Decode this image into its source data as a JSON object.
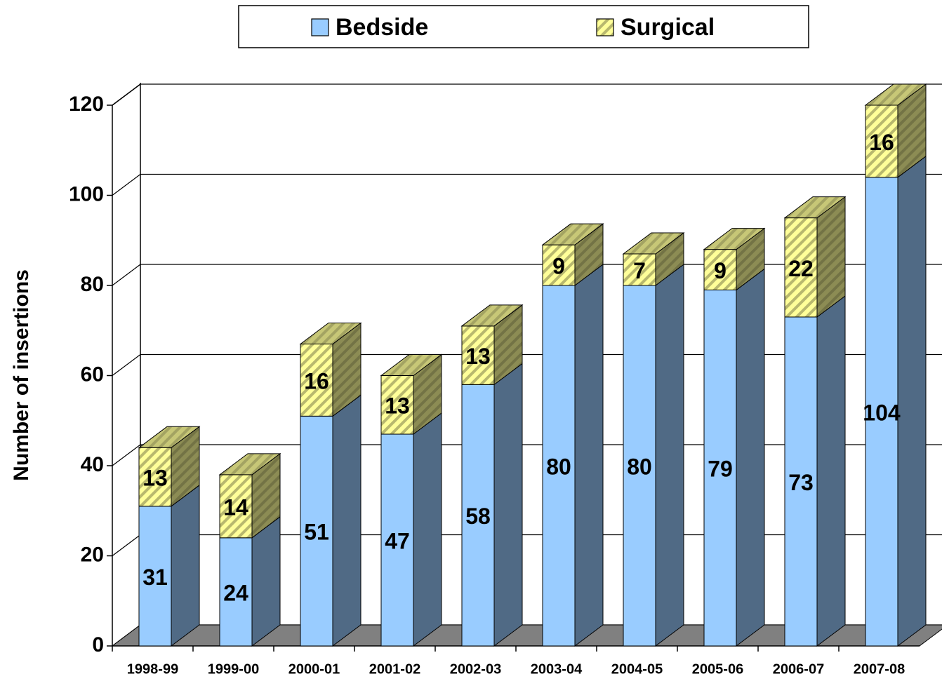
{
  "chart_data": {
    "type": "bar",
    "stacked": true,
    "ylabel": "Number of insertions",
    "categories": [
      "1998-99",
      "1999-00",
      "2000-01",
      "2001-02",
      "2002-03",
      "2003-04",
      "2004-05",
      "2005-06",
      "2006-07",
      "2007-08"
    ],
    "series": [
      {
        "name": "Bedside",
        "color": "#99ccff",
        "values": [
          31,
          24,
          51,
          47,
          58,
          80,
          80,
          79,
          73,
          104
        ]
      },
      {
        "name": "Surgical",
        "color": "#ffff99",
        "hatch": true,
        "values": [
          13,
          14,
          16,
          13,
          13,
          9,
          7,
          9,
          22,
          16
        ]
      }
    ],
    "ylim": [
      0,
      120
    ],
    "yticks": [
      0,
      20,
      40,
      60,
      80,
      100,
      120
    ],
    "grid": true,
    "legend": "top"
  }
}
